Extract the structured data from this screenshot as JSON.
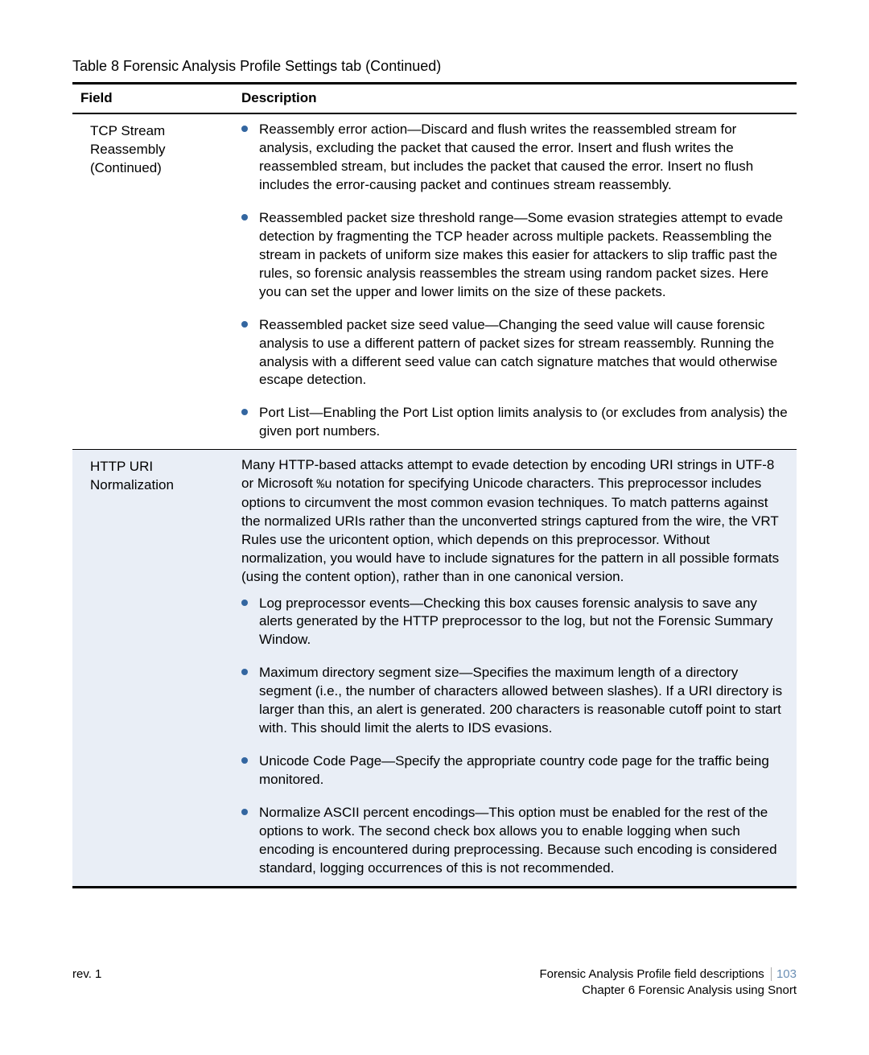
{
  "caption": "Table 8  Forensic Analysis Profile Settings tab (Continued)",
  "columns": {
    "field": "Field",
    "description": "Description"
  },
  "colors": {
    "bullet": "#3366a0",
    "highlight_bg": "#e9eef6",
    "footer_pagenum": "#6b8fb5"
  },
  "rows": {
    "tcp": {
      "field": "TCP Stream Reassembly (Continued)",
      "bullets": [
        "Reassembly error action—Discard and flush writes the reassembled stream for analysis, excluding the packet that caused the error. Insert and flush writes the reassembled stream, but includes the packet that caused the error. Insert no flush includes the error-causing packet and continues stream reassembly.",
        "Reassembled packet size threshold range—Some evasion strategies attempt to evade detection by fragmenting the TCP header across multiple packets. Reassembling the stream in packets of uniform size makes this easier for attackers to slip traffic past the rules, so forensic analysis reassembles the stream using random packet sizes. Here you can set the upper and lower limits on the size of these packets.",
        "Reassembled packet size seed value—Changing the seed value will cause forensic analysis to use a different pattern of packet sizes for stream reassembly. Running the analysis with a different seed value can catch signature matches that would otherwise escape detection.",
        "Port List—Enabling the Port List option limits analysis to (or excludes from analysis) the given port numbers."
      ]
    },
    "http": {
      "field": "HTTP URI Normalization",
      "intro_pre": "Many HTTP-based attacks attempt to evade detection by encoding URI strings in UTF-8 or Microsoft ",
      "intro_mono": "%u",
      "intro_post": " notation for specifying Unicode characters. This preprocessor includes options to circumvent the most common evasion techniques. To match patterns against the normalized URIs rather than the unconverted strings captured from the wire, the VRT Rules use the uricontent option, which depends on this preprocessor. Without normalization, you would have to include signatures for the pattern in all possible formats (using the content option), rather than in one canonical version.",
      "bullets": [
        "Log preprocessor events—Checking this box causes forensic analysis to save any alerts generated by the HTTP preprocessor to the log, but not the Forensic Summary Window.",
        "Maximum directory segment size—Specifies the maximum length of a directory segment (i.e., the number of characters allowed between slashes). If a URI directory is larger than this, an alert is generated. 200 characters is reasonable cutoff point to start with. This should limit the alerts to IDS evasions.",
        "Unicode Code Page—Specify the appropriate country code page for the traffic being monitored.",
        "Normalize ASCII percent encodings—This option must be enabled for the rest of the options to work. The second check box allows you to enable logging when such encoding is encountered during preprocessing. Because such encoding is considered standard, logging occurrences of this is not recommended."
      ]
    }
  },
  "footer": {
    "rev": "rev. 1",
    "section": "Forensic Analysis Profile field descriptions",
    "page": "103",
    "chapter": "Chapter 6 Forensic Analysis using Snort"
  }
}
